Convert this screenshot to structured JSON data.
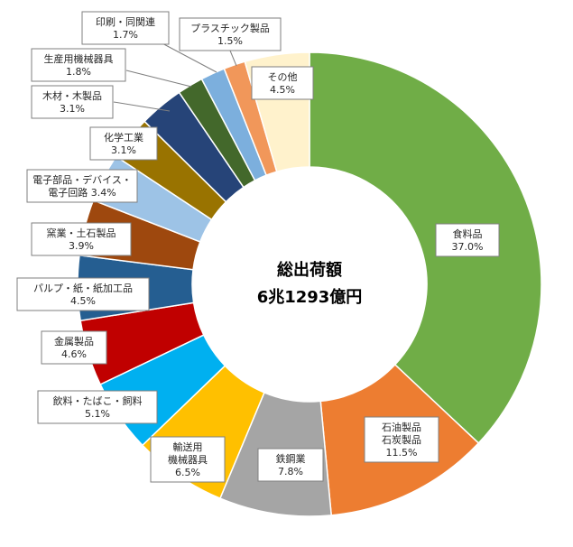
{
  "chart_data": {
    "type": "pie",
    "center_text": [
      "総出荷額",
      "6兆1293億円"
    ],
    "slices": [
      {
        "lines": [
          "食料品",
          "37.0%"
        ],
        "value": 37.0,
        "color": "#70ad47"
      },
      {
        "lines": [
          "石油製品",
          "石炭製品",
          "11.5%"
        ],
        "value": 11.5,
        "color": "#ed7d31"
      },
      {
        "lines": [
          "鉄鋼業",
          "7.8%"
        ],
        "value": 7.8,
        "color": "#a5a5a5"
      },
      {
        "lines": [
          "輸送用",
          "機械器具",
          "6.5%"
        ],
        "value": 6.5,
        "color": "#ffc000"
      },
      {
        "lines": [
          "飲料・たばこ・飼料",
          "5.1%"
        ],
        "value": 5.1,
        "color": "#00b0f0"
      },
      {
        "lines": [
          "金属製品",
          "4.6%"
        ],
        "value": 4.6,
        "color": "#c00000"
      },
      {
        "lines": [
          "パルプ・紙・紙加工品",
          "4.5%"
        ],
        "value": 4.5,
        "color": "#255e91"
      },
      {
        "lines": [
          "窯業・土石製品",
          "3.9%"
        ],
        "value": 3.9,
        "color": "#9e480e"
      },
      {
        "lines": [
          "電子部品・デバイス・",
          "電子回路  3.4%"
        ],
        "value": 3.4,
        "color": "#9dc3e6"
      },
      {
        "lines": [
          "化学工業",
          "3.1%"
        ],
        "value": 3.1,
        "color": "#997300"
      },
      {
        "lines": [
          "木材・木製品",
          "3.1%"
        ],
        "value": 3.1,
        "color": "#264478"
      },
      {
        "lines": [
          "生産用機械器具",
          "1.8%"
        ],
        "value": 1.8,
        "color": "#43682b"
      },
      {
        "lines": [
          "印刷・同関連",
          "1.7%"
        ],
        "value": 1.7,
        "color": "#7cafdd"
      },
      {
        "lines": [
          "プラスチック製品",
          "1.5%"
        ],
        "value": 1.5,
        "color": "#f1975a"
      },
      {
        "lines": [
          "その他",
          "4.5%"
        ],
        "value": 4.5,
        "color": "#fff2cc"
      }
    ]
  }
}
